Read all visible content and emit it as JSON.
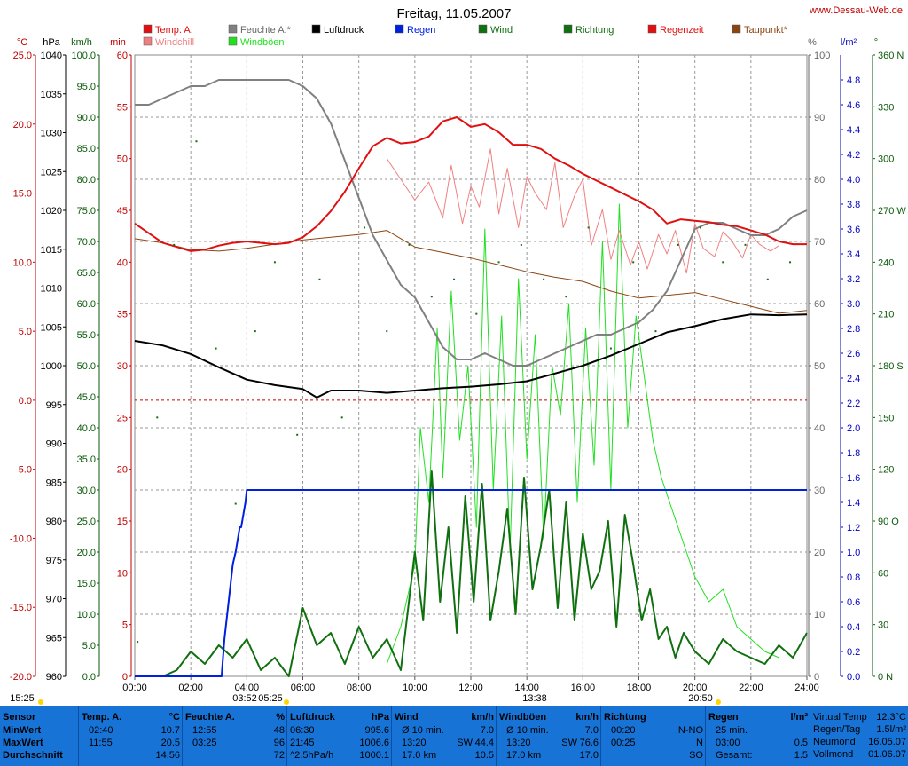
{
  "header": {
    "title": "Freitag, 11.05.2007",
    "website": "www.Dessau-Web.de"
  },
  "units": {
    "temp": "°C",
    "pressure": "hPa",
    "speed": "km/h",
    "minutes": "min",
    "percent": "%",
    "rain": "l/m²",
    "degree": "°"
  },
  "legend": [
    {
      "label": "Temp. A.",
      "color": "#e01010"
    },
    {
      "label": "Windchill",
      "color": "#f08080"
    },
    {
      "label": "Feuchte A.*",
      "color": "#808080"
    },
    {
      "label": "Windböen",
      "color": "#20e020"
    },
    {
      "label": "Luftdruck",
      "color": "#000000"
    },
    {
      "label": "Regen",
      "color": "#0020e0"
    },
    {
      "label": "Wind",
      "color": "#107010"
    },
    {
      "label": "Richtung",
      "color": "#107010"
    },
    {
      "label": "Regenzeit",
      "color": "#e01010"
    },
    {
      "label": "Taupunkt*",
      "color": "#8b4513"
    }
  ],
  "colors": {
    "temp": "#e01010",
    "windchill": "#f08080",
    "humidity": "#808080",
    "gusts": "#20e020",
    "pressure": "#000000",
    "rain": "#0020e0",
    "wind": "#107010",
    "direction": "#107010",
    "rain_time": "#e01010",
    "dewpoint": "#8b4513",
    "footer_bg": "#1873d6"
  },
  "chart_data": {
    "type": "line",
    "title": "Freitag, 11.05.2007",
    "xlim": [
      0,
      24
    ],
    "x_ticks": [
      "00:00",
      "02:00",
      "04:00",
      "06:00",
      "08:00",
      "10:00",
      "12:00",
      "14:00",
      "16:00",
      "18:00",
      "20:00",
      "22:00",
      "24:00"
    ],
    "grid": true,
    "axes": {
      "temp": {
        "ylim": [
          -20,
          25
        ],
        "ticks": [
          "25.0",
          "20.0",
          "15.0",
          "10.0",
          "5.0",
          "0.0",
          "-5.0",
          "-10.0",
          "-15.0",
          "-20.0"
        ]
      },
      "pressure": {
        "ylim": [
          960,
          1040
        ],
        "ticks": [
          "1040",
          "1035",
          "1030",
          "1025",
          "1020",
          "1015",
          "1010",
          "1005",
          "1000",
          "995",
          "990",
          "985",
          "980",
          "975",
          "970",
          "965",
          "960"
        ]
      },
      "speed": {
        "ylim": [
          0,
          100
        ],
        "ticks": [
          "100.0",
          "95.0",
          "90.0",
          "85.0",
          "80.0",
          "75.0",
          "70.0",
          "65.0",
          "60.0",
          "55.0",
          "50.0",
          "45.0",
          "40.0",
          "35.0",
          "30.0",
          "25.0",
          "20.0",
          "15.0",
          "10.0",
          "5.0",
          "0.0"
        ]
      },
      "minutes": {
        "ylim": [
          0,
          60
        ],
        "ticks": [
          "60",
          "55",
          "50",
          "45",
          "40",
          "35",
          "30",
          "25",
          "20",
          "15",
          "10",
          "5",
          "0"
        ]
      },
      "humidity": {
        "ylim": [
          0,
          100
        ],
        "ticks": [
          "100",
          "90",
          "80",
          "70",
          "60",
          "50",
          "40",
          "30",
          "20",
          "10",
          "0"
        ]
      },
      "rain": {
        "ylim": [
          0,
          5
        ],
        "ticks": [
          "4.8",
          "4.6",
          "4.4",
          "4.2",
          "4.0",
          "3.8",
          "3.6",
          "3.4",
          "3.2",
          "3.0",
          "2.8",
          "2.6",
          "2.4",
          "2.2",
          "2.0",
          "1.8",
          "1.6",
          "1.4",
          "1.2",
          "1.0",
          "0.8",
          "0.6",
          "0.4",
          "0.2",
          "0.0"
        ]
      },
      "direction": {
        "ylim": [
          0,
          360
        ],
        "ticks": [
          "360 N",
          "330",
          "300",
          "270 W",
          "240",
          "210",
          "180 S",
          "150",
          "120",
          "90 O",
          "60",
          "30",
          "0 N"
        ]
      }
    },
    "series": [
      {
        "name": "Temp. A.",
        "axis": "temp",
        "x": [
          0,
          0.5,
          1,
          1.5,
          2,
          2.5,
          3,
          3.5,
          4,
          4.5,
          5,
          5.5,
          6,
          6.5,
          7,
          7.5,
          8,
          8.5,
          9,
          9.5,
          10,
          10.5,
          11,
          11.5,
          12,
          12.5,
          13,
          13.5,
          14,
          14.5,
          15,
          15.5,
          16,
          16.5,
          17,
          17.5,
          18,
          18.5,
          19,
          19.5,
          20,
          20.5,
          21,
          21.5,
          22,
          22.5,
          23,
          23.5,
          24
        ],
        "y": [
          12.8,
          12.1,
          11.4,
          11.1,
          10.8,
          10.9,
          11.2,
          11.4,
          11.5,
          11.4,
          11.3,
          11.4,
          11.8,
          12.6,
          13.7,
          15.1,
          16.8,
          18.4,
          19.0,
          18.6,
          18.7,
          19.1,
          20.2,
          20.5,
          19.8,
          20.0,
          19.4,
          18.5,
          18.5,
          18.2,
          17.5,
          17.0,
          16.4,
          15.9,
          15.4,
          14.9,
          14.4,
          13.8,
          12.8,
          13.1,
          13.0,
          12.9,
          12.7,
          12.6,
          12.3,
          12.0,
          11.5,
          11.3,
          11.3
        ]
      },
      {
        "name": "Windchill",
        "axis": "temp",
        "x": [
          9,
          9.5,
          10,
          10.5,
          11,
          11.3,
          11.7,
          12,
          12.3,
          12.7,
          13,
          13.3,
          13.7,
          14,
          14.3,
          14.7,
          15,
          15.3,
          15.7,
          16,
          16.3,
          16.7,
          17,
          17.3,
          17.7,
          18,
          18.3,
          18.7,
          19,
          19.3,
          19.7,
          20,
          20.3,
          20.7,
          21,
          21.3,
          21.7,
          22,
          22.3,
          22.7,
          23
        ],
        "y": [
          17.5,
          16.0,
          14.5,
          15.8,
          13.2,
          17.0,
          12.8,
          15.5,
          14.0,
          18.2,
          13.5,
          16.8,
          12.5,
          16.2,
          15.0,
          13.8,
          17.2,
          12.5,
          14.8,
          16.0,
          11.2,
          13.8,
          10.2,
          12.3,
          9.8,
          11.5,
          9.5,
          12.0,
          10.6,
          12.3,
          9.2,
          12.8,
          11.0,
          10.4,
          12.2,
          11.6,
          10.3,
          12.0,
          11.3,
          10.8,
          11.2
        ]
      },
      {
        "name": "Taupunkt*",
        "axis": "temp",
        "x": [
          0,
          1,
          2,
          3,
          4,
          5,
          6,
          7,
          8,
          9,
          10,
          11,
          12,
          13,
          14,
          15,
          16,
          17,
          18,
          19,
          20,
          21,
          22,
          23,
          24
        ],
        "y": [
          11.7,
          11.4,
          10.9,
          10.8,
          11.0,
          11.3,
          11.6,
          11.8,
          12.0,
          12.3,
          11.1,
          10.7,
          10.3,
          9.8,
          9.3,
          8.9,
          8.6,
          7.9,
          7.4,
          7.6,
          7.8,
          7.3,
          6.8,
          6.3,
          6.5
        ]
      },
      {
        "name": "Feuchte A.*",
        "axis": "humidity",
        "x": [
          0,
          0.5,
          1,
          1.5,
          2,
          2.5,
          3,
          3.5,
          4,
          4.5,
          5,
          5.5,
          6,
          6.5,
          7,
          7.5,
          8,
          8.5,
          9,
          9.5,
          10,
          10.5,
          11,
          11.5,
          12,
          12.5,
          13,
          13.5,
          14,
          14.5,
          15,
          15.5,
          16,
          16.5,
          17,
          17.5,
          18,
          18.5,
          19,
          19.5,
          20,
          20.5,
          21,
          21.5,
          22,
          22.5,
          23,
          23.5,
          24
        ],
        "y": [
          92,
          92,
          93,
          94,
          95,
          95,
          96,
          96,
          96,
          96,
          96,
          96,
          95,
          93,
          89,
          83,
          77,
          71,
          67,
          63,
          61,
          57,
          53,
          51,
          51,
          52,
          51,
          50,
          50,
          51,
          52,
          53,
          54,
          55,
          55,
          56,
          57,
          59,
          62,
          67,
          72,
          73,
          73,
          72,
          71,
          71,
          72,
          74,
          75
        ]
      },
      {
        "name": "Luftdruck",
        "axis": "pressure",
        "x": [
          0,
          1,
          2,
          3,
          4,
          5,
          6,
          6.5,
          7,
          8,
          9,
          10,
          11,
          12,
          13,
          14,
          15,
          16,
          17,
          18,
          19,
          20,
          21,
          22,
          23,
          24
        ],
        "y": [
          1003.2,
          1002.6,
          1001.5,
          999.8,
          998.2,
          997.5,
          997.0,
          995.9,
          996.8,
          996.8,
          996.5,
          996.8,
          997.1,
          997.3,
          997.6,
          998.0,
          999.0,
          1000.0,
          1001.3,
          1002.8,
          1004.3,
          1005.1,
          1006.0,
          1006.6,
          1006.5,
          1006.6
        ]
      },
      {
        "name": "Regen",
        "axis": "rain",
        "x": [
          0,
          3.1,
          3.2,
          3.35,
          3.5,
          3.6,
          3.75,
          3.8,
          3.95,
          4.0,
          4.2,
          24
        ],
        "y": [
          0,
          0,
          0.3,
          0.6,
          0.9,
          1.0,
          1.2,
          1.2,
          1.4,
          1.5,
          1.5,
          1.5
        ]
      },
      {
        "name": "Wind",
        "axis": "speed",
        "x": [
          0,
          0.5,
          1,
          1.5,
          2,
          2.5,
          3,
          3.5,
          4,
          4.5,
          5,
          5.5,
          6,
          6.5,
          7,
          7.5,
          8,
          8.5,
          9,
          9.5,
          10,
          10.3,
          10.6,
          10.9,
          11.2,
          11.5,
          11.8,
          12.1,
          12.4,
          12.7,
          13,
          13.3,
          13.6,
          13.9,
          14.2,
          14.5,
          14.8,
          15.1,
          15.4,
          15.7,
          16,
          16.3,
          16.6,
          16.9,
          17.2,
          17.5,
          17.8,
          18.1,
          18.4,
          18.7,
          19,
          19.3,
          19.6,
          20,
          20.5,
          21,
          21.5,
          22,
          22.5,
          23,
          23.5,
          24
        ],
        "y": [
          0,
          0,
          0,
          1,
          4,
          2,
          5,
          3,
          6,
          1,
          3,
          0,
          11,
          5,
          7,
          2,
          8,
          3,
          6,
          1,
          20,
          9,
          33,
          12,
          24,
          7,
          29,
          12,
          31,
          9,
          17,
          27,
          10,
          32,
          14,
          21,
          30,
          11,
          28,
          9,
          23,
          14,
          17,
          25,
          8,
          26,
          18,
          9,
          14,
          6,
          8,
          3,
          7,
          4,
          2,
          6,
          4,
          3,
          2,
          5,
          3,
          7
        ]
      },
      {
        "name": "Windböen",
        "axis": "speed",
        "x": [
          9,
          9.5,
          10,
          10.2,
          10.5,
          10.8,
          11,
          11.3,
          11.6,
          11.9,
          12.2,
          12.5,
          12.8,
          13.1,
          13.4,
          13.7,
          14,
          14.3,
          14.6,
          14.9,
          15.2,
          15.5,
          15.8,
          16.1,
          16.4,
          16.7,
          17,
          17.3,
          17.6,
          17.9,
          18.2,
          18.5,
          18.8,
          19.1,
          19.4,
          19.7,
          20,
          20.5,
          21,
          21.5,
          22,
          22.5,
          23
        ],
        "y": [
          2,
          8,
          18,
          40,
          28,
          56,
          32,
          62,
          38,
          50,
          24,
          72,
          30,
          58,
          20,
          64,
          35,
          55,
          22,
          50,
          42,
          60,
          28,
          56,
          34,
          70,
          30,
          76,
          40,
          58,
          48,
          38,
          32,
          28,
          24,
          20,
          16,
          12,
          14,
          8,
          6,
          4,
          3
        ]
      },
      {
        "name": "Richtung",
        "axis": "direction",
        "x": [
          0.1,
          0.8,
          1.4,
          2.2,
          2.9,
          3.6,
          4.3,
          5.0,
          5.8,
          6.6,
          7.4,
          8.2,
          9.0,
          9.8,
          10.6,
          11.4,
          12.2,
          13.0,
          13.8,
          14.6,
          15.4,
          16.2,
          17.0,
          17.8,
          18.6,
          19.4,
          20.2,
          21.0,
          21.8,
          22.6,
          23.4
        ],
        "y": [
          20,
          150,
          250,
          310,
          190,
          100,
          200,
          240,
          140,
          230,
          150,
          260,
          200,
          250,
          220,
          230,
          210,
          240,
          250,
          230,
          220,
          260,
          190,
          240,
          200,
          250,
          260,
          240,
          250,
          230,
          240
        ]
      }
    ]
  },
  "time_labels": {
    "start": "15:25",
    "sunrise": "03:52",
    "daybreak": "05:25",
    "noon": "13:38",
    "sunset": "20:50"
  },
  "footer": {
    "columns": [
      {
        "header": "Sensor",
        "rows": [
          "MinWert",
          "MaxWert",
          "Durchschnitt"
        ]
      },
      {
        "header": "Temp. A.",
        "unit": "°C",
        "rows": [
          [
            "02:40",
            "10.7"
          ],
          [
            "11:55",
            "20.5"
          ],
          [
            "",
            "14.56"
          ]
        ]
      },
      {
        "header": "Feuchte A.",
        "unit": "%",
        "rows": [
          [
            "12:55",
            "48"
          ],
          [
            "03:25",
            "96"
          ],
          [
            "",
            "72"
          ]
        ]
      },
      {
        "header": "Luftdruck",
        "unit": "hPa",
        "rows": [
          [
            "06:30",
            "995.6"
          ],
          [
            "21:45",
            "1006.6"
          ],
          [
            "^2.5hPa/h",
            "1000.1"
          ]
        ]
      },
      {
        "header": "Wind",
        "unit": "km/h",
        "rows": [
          [
            "Ø 10 min.",
            "",
            "7.0"
          ],
          [
            "13:20",
            "SW",
            "44.4"
          ],
          [
            "17.0 km",
            "",
            "10.5"
          ]
        ]
      },
      {
        "header": "Windböen",
        "unit": "km/h",
        "rows": [
          [
            "Ø 10 min.",
            "",
            "7.0"
          ],
          [
            "13:20",
            "SW",
            "76.6"
          ],
          [
            "17.0 km",
            "",
            "17.0"
          ]
        ]
      },
      {
        "header": "Richtung",
        "unit": "",
        "rows": [
          [
            "00:20",
            "N-NO"
          ],
          [
            "00:25",
            "N"
          ],
          [
            "",
            "SO"
          ]
        ]
      },
      {
        "header": "Regen",
        "unit": "l/m²",
        "rows": [
          [
            "25 min.",
            ""
          ],
          [
            "03:00",
            "0.5"
          ],
          [
            "Gesamt:",
            "1.5"
          ]
        ]
      },
      {
        "header": "",
        "unit": "",
        "rows": [
          [
            "Virtual Temp",
            "12.3°C"
          ],
          [
            "Regen/Tag",
            "1.5l/m²"
          ],
          [
            "Neumond",
            "16.05.07"
          ],
          [
            "Vollmond",
            "01.06.07"
          ]
        ]
      }
    ]
  }
}
